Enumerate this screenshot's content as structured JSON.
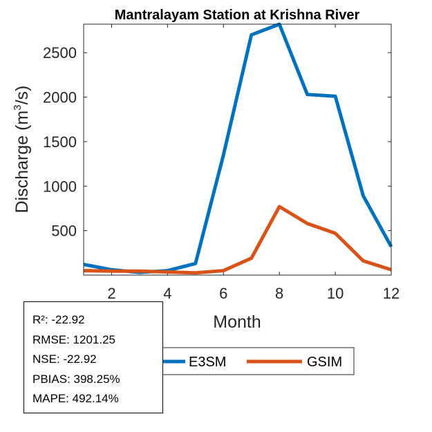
{
  "chart_data": {
    "type": "line",
    "title": "Mantralayam  Station at  Krishna  River",
    "xlabel": "Month",
    "ylabel": "Discharge (m³/s)",
    "xlim": [
      1,
      12
    ],
    "ylim": [
      0,
      2820
    ],
    "xticks": [
      2,
      4,
      6,
      8,
      10,
      12
    ],
    "yticks": [
      500,
      1000,
      1500,
      2000,
      2500
    ],
    "x": [
      1,
      2,
      3,
      4,
      5,
      6,
      7,
      8,
      9,
      10,
      11,
      12
    ],
    "series": [
      {
        "name": "E3SM",
        "color": "#0072BD",
        "values": [
          120,
          60,
          30,
          50,
          130,
          1350,
          2700,
          2820,
          2030,
          2010,
          890,
          320
        ]
      },
      {
        "name": "GSIM",
        "color": "#D95319",
        "values": [
          50,
          45,
          45,
          35,
          25,
          50,
          190,
          770,
          580,
          470,
          160,
          60
        ]
      }
    ],
    "legend": {
      "location": "bottom-right",
      "entries": [
        "E3SM",
        "GSIM"
      ]
    },
    "grid": false
  },
  "stats": {
    "r2": "R²: -22.92",
    "rmse": "RMSE: 1201.25",
    "nse": "NSE: -22.92",
    "pbias": "PBIAS: 398.25%",
    "mape": "MAPE: 492.14%"
  }
}
